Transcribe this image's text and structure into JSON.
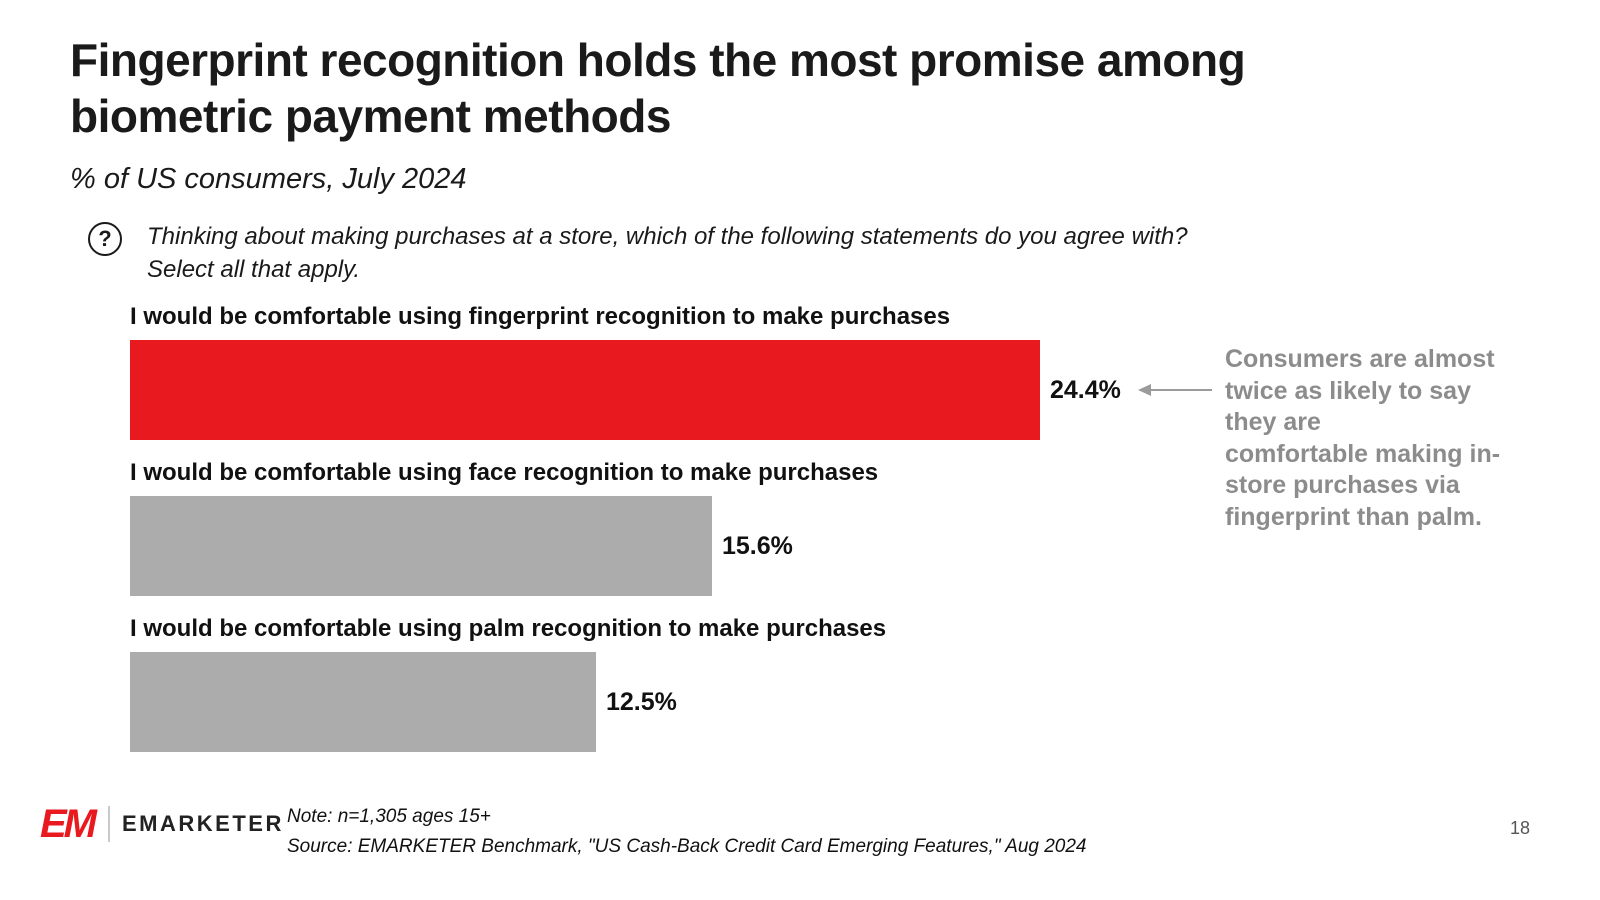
{
  "header": {
    "title": "Fingerprint recognition holds the most promise among\nbiometric payment methods",
    "subtitle": "% of US consumers, July 2024"
  },
  "question": {
    "icon": "question-mark-icon",
    "icon_glyph": "?",
    "text": "Thinking about making purchases at a store, which of the following statements do you agree with?\nSelect all that apply."
  },
  "chart_data": {
    "type": "bar",
    "orientation": "horizontal",
    "title": "Fingerprint recognition holds the most promise among biometric payment methods",
    "subtitle": "% of US consumers, July 2024",
    "categories": [
      "I would be comfortable using fingerprint recognition to make purchases",
      "I would be comfortable using face recognition to make purchases",
      "I would be comfortable using palm recognition to make purchases"
    ],
    "values": [
      24.4,
      15.6,
      12.5
    ],
    "value_labels": [
      "24.4%",
      "15.6%",
      "12.5%"
    ],
    "bar_colors": [
      "#e8191f",
      "#acacac",
      "#acacac"
    ],
    "xlim": [
      0,
      26
    ],
    "grid": false,
    "legend": false,
    "unit": "%"
  },
  "annotation": {
    "text": "Consumers are almost\ntwice as likely to say\nthey are\ncomfortable making in-\nstore purchases via\nfingerprint than palm.",
    "arrow_color": "#9b9b9b"
  },
  "footer": {
    "logo_text": "EM",
    "brand": "EMARKETER",
    "note": "Note: n=1,305 ages 15+",
    "source": "Source: EMARKETER Benchmark, \"US Cash-Back Credit Card Emerging Features,\" Aug 2024"
  },
  "page": {
    "number": "18"
  }
}
